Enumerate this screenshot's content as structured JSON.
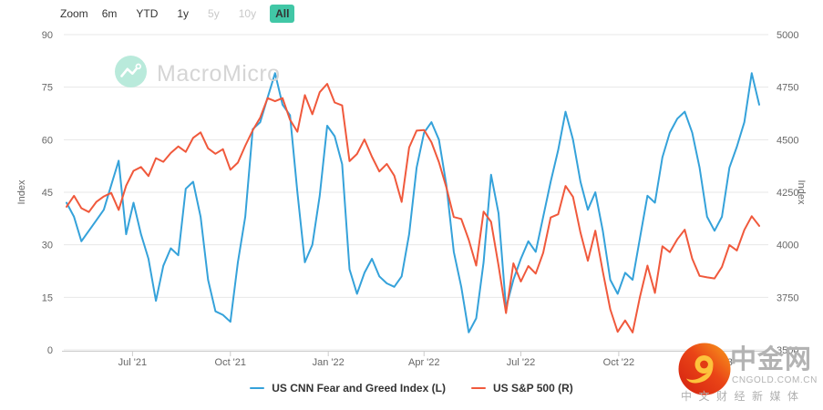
{
  "toolbar": {
    "zoom_label": "Zoom",
    "buttons": [
      {
        "label": "6m",
        "state": "enabled"
      },
      {
        "label": "YTD",
        "state": "enabled"
      },
      {
        "label": "1y",
        "state": "enabled"
      },
      {
        "label": "5y",
        "state": "disabled"
      },
      {
        "label": "10y",
        "state": "disabled"
      },
      {
        "label": "All",
        "state": "selected"
      }
    ]
  },
  "colors": {
    "fear_greed_line": "#35a2da",
    "sp500_line": "#f0593c",
    "selected_button_bg": "#41c7a6",
    "gridline": "#e7e7e7",
    "axis_line": "#cccccc",
    "axis_label": "#666666"
  },
  "watermark_macromicro": {
    "brand": "MacroMicro"
  },
  "watermark_cngold": {
    "site_name": "中金网",
    "domain": "CNGOLD.COM.CN",
    "tagline": "中文财经新媒体"
  },
  "legend": [
    {
      "label": "US CNN Fear and Greed Index (L)",
      "color": "#35a2da"
    },
    {
      "label": "US S&P 500 (R)",
      "color": "#f0593c"
    }
  ],
  "chart_data": {
    "type": "line",
    "grid": "horizontal",
    "x_range": [
      "2021-04-30",
      "2023-02-10"
    ],
    "left_axis": {
      "label": "Index",
      "range": [
        0,
        90
      ],
      "ticks": [
        0,
        15,
        30,
        45,
        60,
        75,
        90
      ]
    },
    "right_axis": {
      "label": "Index",
      "range": [
        3500,
        5000
      ],
      "ticks": [
        3500,
        3750,
        4000,
        4250,
        4500,
        4750,
        5000
      ]
    },
    "x_ticks": [
      {
        "label": "Jul '21",
        "date": "2021-07-01"
      },
      {
        "label": "Oct '21",
        "date": "2021-10-01"
      },
      {
        "label": "Jan '22",
        "date": "2022-01-01"
      },
      {
        "label": "Apr '22",
        "date": "2022-04-01"
      },
      {
        "label": "Jul '22",
        "date": "2022-07-01"
      },
      {
        "label": "Oct '22",
        "date": "2022-10-01"
      },
      {
        "label": "Jan '23",
        "date": "2023-01-01"
      }
    ],
    "x": [
      "2021-04-30",
      "2021-05-07",
      "2021-05-14",
      "2021-05-21",
      "2021-05-28",
      "2021-06-04",
      "2021-06-11",
      "2021-06-18",
      "2021-06-25",
      "2021-07-02",
      "2021-07-09",
      "2021-07-16",
      "2021-07-23",
      "2021-07-30",
      "2021-08-06",
      "2021-08-13",
      "2021-08-20",
      "2021-08-27",
      "2021-09-03",
      "2021-09-10",
      "2021-09-17",
      "2021-09-24",
      "2021-10-01",
      "2021-10-08",
      "2021-10-15",
      "2021-10-22",
      "2021-10-29",
      "2021-11-05",
      "2021-11-12",
      "2021-11-19",
      "2021-11-26",
      "2021-12-03",
      "2021-12-10",
      "2021-12-17",
      "2021-12-24",
      "2021-12-31",
      "2022-01-07",
      "2022-01-14",
      "2022-01-21",
      "2022-01-28",
      "2022-02-04",
      "2022-02-11",
      "2022-02-18",
      "2022-02-25",
      "2022-03-04",
      "2022-03-11",
      "2022-03-18",
      "2022-03-25",
      "2022-04-01",
      "2022-04-08",
      "2022-04-15",
      "2022-04-22",
      "2022-04-29",
      "2022-05-06",
      "2022-05-13",
      "2022-05-20",
      "2022-05-27",
      "2022-06-03",
      "2022-06-10",
      "2022-06-17",
      "2022-06-24",
      "2022-07-01",
      "2022-07-08",
      "2022-07-15",
      "2022-07-22",
      "2022-07-29",
      "2022-08-05",
      "2022-08-12",
      "2022-08-19",
      "2022-08-26",
      "2022-09-02",
      "2022-09-09",
      "2022-09-16",
      "2022-09-23",
      "2022-09-30",
      "2022-10-07",
      "2022-10-14",
      "2022-10-21",
      "2022-10-28",
      "2022-11-04",
      "2022-11-11",
      "2022-11-18",
      "2022-11-25",
      "2022-12-02",
      "2022-12-09",
      "2022-12-16",
      "2022-12-23",
      "2022-12-30",
      "2023-01-06",
      "2023-01-13",
      "2023-01-20",
      "2023-01-27",
      "2023-02-03",
      "2023-02-10"
    ],
    "series": [
      {
        "name": "US CNN Fear and Greed Index (L)",
        "axis": "left",
        "color": "#35a2da",
        "values": [
          42,
          38,
          31,
          34,
          37,
          40,
          47,
          54,
          33,
          42,
          33,
          26,
          14,
          24,
          29,
          27,
          46,
          48,
          38,
          20,
          11,
          10,
          8,
          25,
          38,
          63,
          65,
          72,
          79,
          70,
          67,
          45,
          25,
          30,
          44,
          64,
          61,
          53,
          23,
          16,
          22,
          26,
          21,
          19,
          18,
          21,
          33,
          52,
          62,
          65,
          60,
          47,
          28,
          18,
          5,
          9,
          25,
          50,
          39,
          12,
          20,
          26,
          31,
          28,
          38,
          48,
          57,
          68,
          60,
          48,
          40,
          45,
          34,
          20,
          16,
          22,
          20,
          32,
          44,
          42,
          55,
          62,
          66,
          68,
          62,
          52,
          38,
          34,
          38,
          52,
          58,
          65,
          79,
          70
        ]
      },
      {
        "name": "US S&P 500 (R)",
        "axis": "right",
        "color": "#f0593c",
        "values": [
          4181,
          4233,
          4174,
          4156,
          4204,
          4230,
          4247,
          4166,
          4281,
          4352,
          4370,
          4327,
          4412,
          4395,
          4437,
          4468,
          4442,
          4509,
          4535,
          4459,
          4433,
          4455,
          4357,
          4391,
          4471,
          4545,
          4605,
          4698,
          4683,
          4698,
          4595,
          4538,
          4712,
          4621,
          4726,
          4766,
          4677,
          4663,
          4398,
          4432,
          4501,
          4419,
          4349,
          4385,
          4329,
          4204,
          4463,
          4543,
          4546,
          4488,
          4393,
          4272,
          4132,
          4123,
          4024,
          3901,
          4158,
          4109,
          3901,
          3675,
          3912,
          3825,
          3899,
          3863,
          3962,
          4130,
          4145,
          4280,
          4228,
          4058,
          3924,
          4067,
          3873,
          3693,
          3586,
          3640,
          3583,
          3753,
          3901,
          3771,
          3993,
          3965,
          4026,
          4072,
          3934,
          3852,
          3845,
          3840,
          3895,
          3999,
          3973,
          4071,
          4136,
          4090
        ]
      }
    ]
  }
}
